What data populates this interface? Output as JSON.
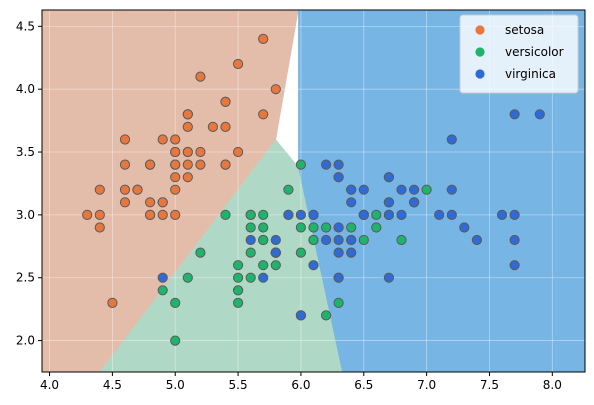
{
  "chart_data": {
    "type": "scatter",
    "title": "",
    "xlabel": "",
    "ylabel": "",
    "xlim": [
      3.94,
      8.26
    ],
    "ylim": [
      1.75,
      4.63
    ],
    "xticks": [
      "4.0",
      "4.5",
      "5.0",
      "5.5",
      "6.0",
      "6.5",
      "7.0",
      "7.5",
      "8.0"
    ],
    "yticks": [
      "2.0",
      "2.5",
      "3.0",
      "3.5",
      "4.0",
      "4.5"
    ],
    "grid": true,
    "legend_position": "top-right",
    "regions": [
      {
        "class": "setosa",
        "color": "#e3bcaa",
        "polygon": [
          [
            3.94,
            4.63
          ],
          [
            5.9,
            4.63
          ],
          [
            5.98,
            4.63
          ],
          [
            5.8,
            3.6
          ],
          [
            4.4,
            1.75
          ],
          [
            3.94,
            1.75
          ]
        ]
      },
      {
        "class": "versicolor",
        "color": "#b0d8c6",
        "polygon": [
          [
            4.4,
            1.75
          ],
          [
            5.8,
            3.6
          ],
          [
            5.98,
            3.38
          ],
          [
            6.33,
            1.75
          ]
        ]
      },
      {
        "class": "virginica",
        "color": "#77b5e5",
        "polygon": [
          [
            5.98,
            4.63
          ],
          [
            8.26,
            4.63
          ],
          [
            8.26,
            1.75
          ],
          [
            6.33,
            1.75
          ],
          [
            5.98,
            3.38
          ],
          [
            5.98,
            4.63
          ]
        ]
      }
    ],
    "series": [
      {
        "name": "setosa",
        "color": "#e8773d",
        "points": [
          [
            5.1,
            3.5
          ],
          [
            4.9,
            3.0
          ],
          [
            4.7,
            3.2
          ],
          [
            4.6,
            3.1
          ],
          [
            5.0,
            3.6
          ],
          [
            5.4,
            3.9
          ],
          [
            4.6,
            3.4
          ],
          [
            5.0,
            3.4
          ],
          [
            4.4,
            2.9
          ],
          [
            4.9,
            3.1
          ],
          [
            5.4,
            3.7
          ],
          [
            4.8,
            3.4
          ],
          [
            4.8,
            3.0
          ],
          [
            4.3,
            3.0
          ],
          [
            5.8,
            4.0
          ],
          [
            5.7,
            4.4
          ],
          [
            5.4,
            3.9
          ],
          [
            5.1,
            3.5
          ],
          [
            5.7,
            3.8
          ],
          [
            5.1,
            3.8
          ],
          [
            5.4,
            3.4
          ],
          [
            5.1,
            3.7
          ],
          [
            4.6,
            3.6
          ],
          [
            5.1,
            3.3
          ],
          [
            4.8,
            3.4
          ],
          [
            5.0,
            3.0
          ],
          [
            5.0,
            3.4
          ],
          [
            5.2,
            3.5
          ],
          [
            5.2,
            3.4
          ],
          [
            4.7,
            3.2
          ],
          [
            4.8,
            3.1
          ],
          [
            5.4,
            3.4
          ],
          [
            5.2,
            4.1
          ],
          [
            5.5,
            4.2
          ],
          [
            4.9,
            3.1
          ],
          [
            5.0,
            3.2
          ],
          [
            5.5,
            3.5
          ],
          [
            4.9,
            3.6
          ],
          [
            4.4,
            3.0
          ],
          [
            5.1,
            3.4
          ],
          [
            5.0,
            3.5
          ],
          [
            4.5,
            2.3
          ],
          [
            4.4,
            3.2
          ],
          [
            5.0,
            3.5
          ],
          [
            5.1,
            3.8
          ],
          [
            4.8,
            3.0
          ],
          [
            5.1,
            3.8
          ],
          [
            4.6,
            3.2
          ],
          [
            5.3,
            3.7
          ],
          [
            5.0,
            3.3
          ]
        ]
      },
      {
        "name": "versicolor",
        "color": "#1fb46c",
        "points": [
          [
            7.0,
            3.2
          ],
          [
            6.4,
            3.2
          ],
          [
            6.9,
            3.1
          ],
          [
            5.5,
            2.3
          ],
          [
            6.5,
            2.8
          ],
          [
            5.7,
            2.8
          ],
          [
            6.3,
            3.3
          ],
          [
            4.9,
            2.4
          ],
          [
            6.6,
            2.9
          ],
          [
            5.2,
            2.7
          ],
          [
            5.0,
            2.0
          ],
          [
            5.9,
            3.0
          ],
          [
            6.0,
            2.2
          ],
          [
            6.1,
            2.9
          ],
          [
            5.6,
            2.9
          ],
          [
            6.7,
            3.1
          ],
          [
            5.6,
            3.0
          ],
          [
            5.8,
            2.7
          ],
          [
            6.2,
            2.2
          ],
          [
            5.6,
            2.5
          ],
          [
            5.9,
            3.2
          ],
          [
            6.1,
            2.8
          ],
          [
            6.3,
            2.5
          ],
          [
            6.1,
            2.8
          ],
          [
            6.4,
            2.9
          ],
          [
            6.6,
            3.0
          ],
          [
            6.8,
            2.8
          ],
          [
            6.7,
            3.0
          ],
          [
            6.0,
            2.9
          ],
          [
            5.7,
            2.6
          ],
          [
            5.5,
            2.4
          ],
          [
            5.5,
            2.4
          ],
          [
            5.8,
            2.7
          ],
          [
            6.0,
            2.7
          ],
          [
            5.4,
            3.0
          ],
          [
            6.0,
            3.4
          ],
          [
            6.7,
            3.1
          ],
          [
            6.3,
            2.3
          ],
          [
            5.6,
            3.0
          ],
          [
            5.5,
            2.5
          ],
          [
            5.5,
            2.6
          ],
          [
            6.1,
            3.0
          ],
          [
            5.8,
            2.6
          ],
          [
            5.0,
            2.3
          ],
          [
            5.6,
            2.7
          ],
          [
            5.7,
            3.0
          ],
          [
            5.7,
            2.9
          ],
          [
            6.2,
            2.9
          ],
          [
            5.1,
            2.5
          ],
          [
            5.7,
            2.8
          ]
        ]
      },
      {
        "name": "virginica",
        "color": "#2f6bd6",
        "points": [
          [
            6.3,
            3.3
          ],
          [
            5.8,
            2.7
          ],
          [
            7.1,
            3.0
          ],
          [
            6.3,
            2.9
          ],
          [
            6.5,
            3.0
          ],
          [
            7.6,
            3.0
          ],
          [
            4.9,
            2.5
          ],
          [
            7.3,
            2.9
          ],
          [
            6.7,
            2.5
          ],
          [
            7.2,
            3.6
          ],
          [
            6.5,
            3.2
          ],
          [
            6.4,
            2.7
          ],
          [
            6.8,
            3.0
          ],
          [
            5.7,
            2.5
          ],
          [
            5.8,
            2.8
          ],
          [
            6.4,
            3.2
          ],
          [
            6.5,
            3.0
          ],
          [
            7.7,
            3.8
          ],
          [
            7.7,
            2.6
          ],
          [
            6.0,
            2.2
          ],
          [
            6.9,
            3.2
          ],
          [
            5.6,
            2.8
          ],
          [
            7.7,
            2.8
          ],
          [
            6.3,
            2.7
          ],
          [
            6.7,
            3.3
          ],
          [
            7.2,
            3.2
          ],
          [
            6.2,
            2.8
          ],
          [
            6.1,
            3.0
          ],
          [
            6.4,
            2.8
          ],
          [
            7.2,
            3.0
          ],
          [
            7.4,
            2.8
          ],
          [
            7.9,
            3.8
          ],
          [
            6.4,
            2.8
          ],
          [
            6.3,
            2.8
          ],
          [
            6.1,
            2.6
          ],
          [
            7.7,
            3.0
          ],
          [
            6.3,
            3.4
          ],
          [
            6.4,
            3.1
          ],
          [
            6.0,
            3.0
          ],
          [
            6.9,
            3.1
          ],
          [
            6.7,
            3.1
          ],
          [
            6.9,
            3.1
          ],
          [
            5.8,
            2.7
          ],
          [
            6.8,
            3.2
          ],
          [
            6.7,
            3.3
          ],
          [
            6.7,
            3.0
          ],
          [
            6.3,
            2.5
          ],
          [
            6.5,
            3.0
          ],
          [
            6.2,
            3.4
          ],
          [
            5.9,
            3.0
          ]
        ]
      }
    ]
  }
}
